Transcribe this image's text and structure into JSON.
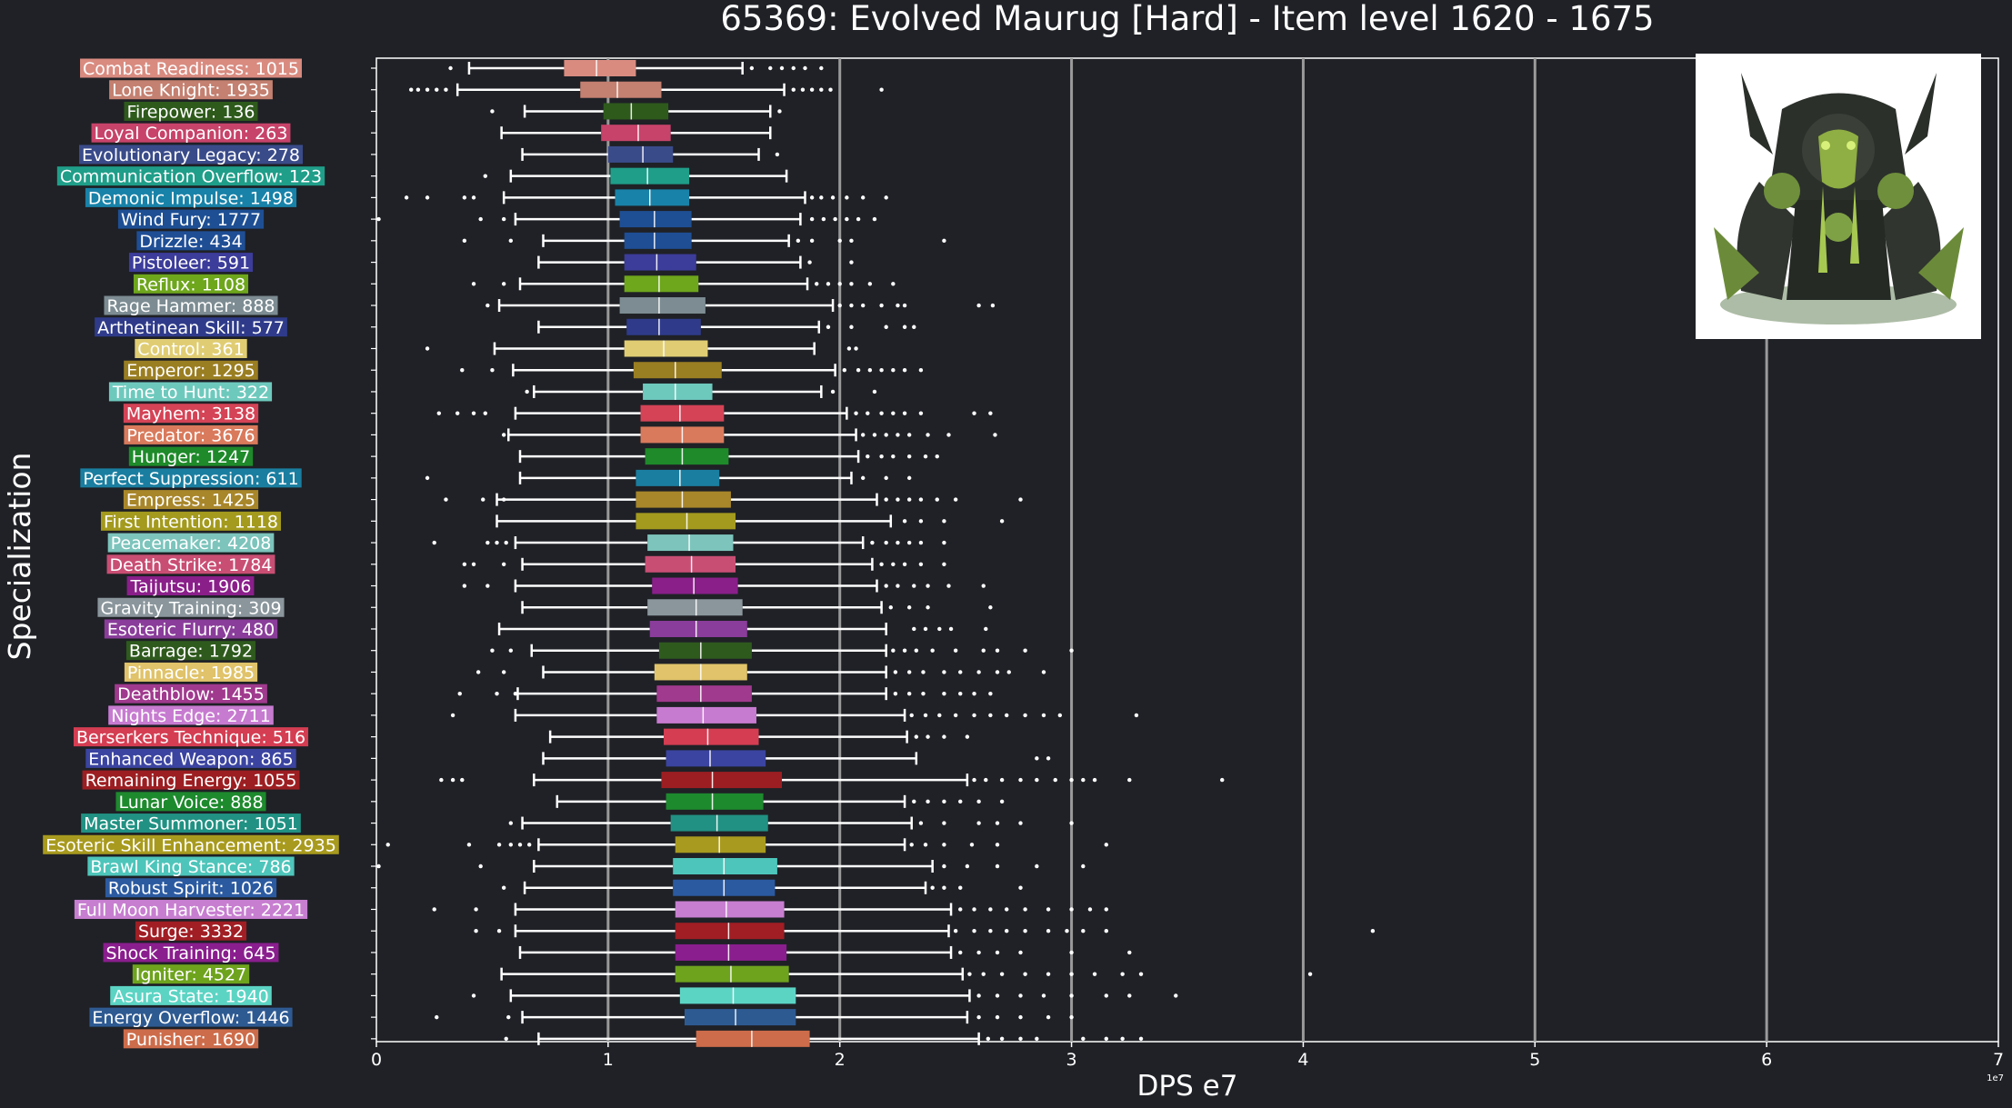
{
  "chart_data": {
    "type": "box",
    "title": "65369: Evolved Maurug [Hard] - Item level 1620 - 1675",
    "xlabel": "DPS e7",
    "ylabel": "Specialization",
    "axis_offset_label": "1e7",
    "xlim": [
      0,
      7
    ],
    "xticks": [
      "0",
      "1",
      "2",
      "3",
      "4",
      "5",
      "6",
      "7"
    ],
    "grid": "vertical",
    "legend": "none",
    "categories": [
      {
        "label": "Combat Readiness: 1015",
        "color": "#d98b80",
        "stats": [
          0.4,
          0.81,
          0.95,
          1.12,
          1.58
        ],
        "outliers": [
          0.32,
          1.62,
          1.7,
          1.75,
          1.8,
          1.85,
          1.92
        ]
      },
      {
        "label": "Lone Knight: 1935",
        "color": "#c48070",
        "stats": [
          0.35,
          0.88,
          1.04,
          1.23,
          1.76
        ],
        "outliers": [
          0.15,
          0.18,
          0.22,
          0.26,
          0.3,
          1.8,
          1.84,
          1.88,
          1.92,
          1.96,
          2.18
        ]
      },
      {
        "label": "Firepower: 136",
        "color": "#2e5a1c",
        "stats": [
          0.64,
          0.98,
          1.1,
          1.26,
          1.7
        ],
        "outliers": [
          0.5,
          1.74
        ]
      },
      {
        "label": "Loyal Companion: 263",
        "color": "#c7436a",
        "stats": [
          0.54,
          0.97,
          1.13,
          1.27,
          1.7
        ],
        "outliers": []
      },
      {
        "label": "Evolutionary Legacy: 278",
        "color": "#3a4b8a",
        "stats": [
          0.63,
          1.0,
          1.15,
          1.28,
          1.65
        ],
        "outliers": [
          1.73
        ]
      },
      {
        "label": "Communication Overflow: 123",
        "color": "#1f9e89",
        "stats": [
          0.58,
          1.01,
          1.17,
          1.35,
          1.77
        ],
        "outliers": [
          0.47
        ]
      },
      {
        "label": "Demonic Impulse: 1498",
        "color": "#1882a8",
        "stats": [
          0.55,
          1.03,
          1.18,
          1.35,
          1.85
        ],
        "outliers": [
          0.13,
          0.22,
          0.38,
          0.42,
          1.88,
          1.92,
          1.97,
          2.03,
          2.1,
          2.2
        ]
      },
      {
        "label": "Wind Fury: 1777",
        "color": "#1e4f94",
        "stats": [
          0.6,
          1.05,
          1.2,
          1.36,
          1.83
        ],
        "outliers": [
          0.01,
          0.45,
          0.55,
          1.88,
          1.93,
          1.98,
          2.03,
          2.08,
          2.15
        ]
      },
      {
        "label": "Drizzle: 434",
        "color": "#1f4e95",
        "stats": [
          0.72,
          1.07,
          1.2,
          1.36,
          1.78
        ],
        "outliers": [
          0.38,
          0.58,
          1.82,
          1.88,
          2.0,
          2.05,
          2.45
        ]
      },
      {
        "label": "Pistoleer: 591",
        "color": "#3c3c9a",
        "stats": [
          0.7,
          1.07,
          1.21,
          1.38,
          1.83
        ],
        "outliers": [
          1.87,
          2.05
        ]
      },
      {
        "label": "Reflux: 1108",
        "color": "#6ea61c",
        "stats": [
          0.62,
          1.07,
          1.22,
          1.39,
          1.86
        ],
        "outliers": [
          0.42,
          0.55,
          1.9,
          1.95,
          2.0,
          2.05,
          2.13,
          2.23
        ]
      },
      {
        "label": "Rage Hammer: 888",
        "color": "#7c8c92",
        "stats": [
          0.53,
          1.05,
          1.22,
          1.42,
          1.97
        ],
        "outliers": [
          0.48,
          2.0,
          2.05,
          2.1,
          2.18,
          2.25,
          2.28,
          2.6,
          2.66
        ]
      },
      {
        "label": "Arthetinean Skill: 577",
        "color": "#2f3b8a",
        "stats": [
          0.7,
          1.08,
          1.22,
          1.4,
          1.91
        ],
        "outliers": [
          1.95,
          2.05,
          2.2,
          2.28,
          2.32
        ]
      },
      {
        "label": "Control: 361",
        "color": "#e0cd73",
        "stats": [
          0.51,
          1.07,
          1.24,
          1.43,
          1.89
        ],
        "outliers": [
          0.22,
          2.04,
          2.07
        ]
      },
      {
        "label": "Emperor: 1295",
        "color": "#9a7e22",
        "stats": [
          0.59,
          1.11,
          1.29,
          1.49,
          1.98
        ],
        "outliers": [
          0.37,
          0.5,
          2.02,
          2.08,
          2.13,
          2.18,
          2.23,
          2.28,
          2.35
        ]
      },
      {
        "label": "Time to Hunt: 322",
        "color": "#6ec9bd",
        "stats": [
          0.68,
          1.15,
          1.29,
          1.45,
          1.92
        ],
        "outliers": [
          0.65,
          1.97,
          2.15
        ]
      },
      {
        "label": "Mayhem: 3138",
        "color": "#d44356",
        "stats": [
          0.6,
          1.14,
          1.31,
          1.5,
          2.03
        ],
        "outliers": [
          0.27,
          0.35,
          0.42,
          0.47,
          2.07,
          2.12,
          2.18,
          2.23,
          2.28,
          2.35,
          2.58,
          2.65
        ]
      },
      {
        "label": "Predator: 3676",
        "color": "#d97a5c",
        "stats": [
          0.57,
          1.14,
          1.32,
          1.5,
          2.07
        ],
        "outliers": [
          0.55,
          2.1,
          2.15,
          2.2,
          2.25,
          2.3,
          2.38,
          2.47,
          2.67
        ]
      },
      {
        "label": "Hunger: 1247",
        "color": "#1e8a2a",
        "stats": [
          0.62,
          1.16,
          1.32,
          1.52,
          2.08
        ],
        "outliers": [
          2.12,
          2.18,
          2.23,
          2.3,
          2.37,
          2.42
        ]
      },
      {
        "label": "Perfect Suppression: 611",
        "color": "#1a7ea0",
        "stats": [
          0.62,
          1.12,
          1.31,
          1.48,
          2.05
        ],
        "outliers": [
          0.22,
          2.1,
          2.2,
          2.3
        ]
      },
      {
        "label": "Empress: 1425",
        "color": "#a8862a",
        "stats": [
          0.52,
          1.12,
          1.32,
          1.53,
          2.16
        ],
        "outliers": [
          0.3,
          0.46,
          0.55,
          2.2,
          2.25,
          2.3,
          2.35,
          2.42,
          2.5,
          2.78
        ]
      },
      {
        "label": "First Intention: 1118",
        "color": "#a39a1e",
        "stats": [
          0.52,
          1.12,
          1.34,
          1.55,
          2.22
        ],
        "outliers": [
          2.28,
          2.35,
          2.45,
          2.7
        ]
      },
      {
        "label": "Peacemaker: 4208",
        "color": "#7cc4bc",
        "stats": [
          0.6,
          1.17,
          1.35,
          1.54,
          2.1
        ],
        "outliers": [
          0.25,
          0.48,
          0.52,
          0.56,
          2.14,
          2.2,
          2.25,
          2.3,
          2.35,
          2.45
        ]
      },
      {
        "label": "Death Strike: 1784",
        "color": "#c94e74",
        "stats": [
          0.63,
          1.16,
          1.36,
          1.55,
          2.14
        ],
        "outliers": [
          0.38,
          0.42,
          0.55,
          2.18,
          2.23,
          2.28,
          2.35,
          2.45
        ]
      },
      {
        "label": "Taijutsu: 1906",
        "color": "#8a1f8a",
        "stats": [
          0.6,
          1.19,
          1.37,
          1.56,
          2.16
        ],
        "outliers": [
          0.38,
          0.48,
          2.2,
          2.25,
          2.32,
          2.38,
          2.47,
          2.62
        ]
      },
      {
        "label": "Gravity Training: 309",
        "color": "#8a969c",
        "stats": [
          0.63,
          1.17,
          1.38,
          1.58,
          2.18
        ],
        "outliers": [
          2.22,
          2.3,
          2.38,
          2.65
        ]
      },
      {
        "label": "Esoteric Flurry: 480",
        "color": "#8a3d9a",
        "stats": [
          0.53,
          1.18,
          1.38,
          1.6,
          2.2
        ],
        "outliers": [
          2.32,
          2.37,
          2.43,
          2.48,
          2.63
        ]
      },
      {
        "label": "Barrage: 1792",
        "color": "#2f5a1e",
        "stats": [
          0.67,
          1.22,
          1.4,
          1.62,
          2.2
        ],
        "outliers": [
          0.5,
          0.58,
          2.23,
          2.28,
          2.33,
          2.4,
          2.5,
          2.62,
          2.68,
          2.8,
          3.0
        ]
      },
      {
        "label": "Pinnacle: 1985",
        "color": "#e0c36a",
        "stats": [
          0.72,
          1.2,
          1.4,
          1.6,
          2.2
        ],
        "outliers": [
          0.44,
          0.55,
          2.24,
          2.3,
          2.36,
          2.45,
          2.52,
          2.6,
          2.68,
          2.73,
          2.88
        ]
      },
      {
        "label": "Deathblow: 1455",
        "color": "#a03a8e",
        "stats": [
          0.61,
          1.21,
          1.4,
          1.62,
          2.2
        ],
        "outliers": [
          0.36,
          0.52,
          0.6,
          2.24,
          2.3,
          2.36,
          2.45,
          2.52,
          2.58,
          2.65
        ]
      },
      {
        "label": "Nights Edge: 2711",
        "color": "#c77bd0",
        "stats": [
          0.6,
          1.21,
          1.41,
          1.64,
          2.28
        ],
        "outliers": [
          0.33,
          2.31,
          2.37,
          2.43,
          2.5,
          2.58,
          2.65,
          2.72,
          2.8,
          2.88,
          2.95,
          3.28
        ]
      },
      {
        "label": "Berserkers Technique: 516",
        "color": "#d43d52",
        "stats": [
          0.75,
          1.24,
          1.43,
          1.65,
          2.29
        ],
        "outliers": [
          2.33,
          2.38,
          2.45,
          2.55
        ]
      },
      {
        "label": "Enhanced Weapon: 865",
        "color": "#3b44a0",
        "stats": [
          0.72,
          1.25,
          1.44,
          1.68,
          2.33
        ],
        "outliers": [
          2.85,
          2.9
        ]
      },
      {
        "label": "Remaining Energy: 1055",
        "color": "#9c1e22",
        "stats": [
          0.68,
          1.23,
          1.45,
          1.75,
          2.55
        ],
        "outliers": [
          0.28,
          0.33,
          0.37,
          2.58,
          2.63,
          2.7,
          2.78,
          2.85,
          2.93,
          3.0,
          3.05,
          3.1,
          3.25,
          3.65
        ]
      },
      {
        "label": "Lunar Voice: 888",
        "color": "#1e8a2e",
        "stats": [
          0.78,
          1.25,
          1.45,
          1.67,
          2.28
        ],
        "outliers": [
          2.32,
          2.38,
          2.45,
          2.52,
          2.6,
          2.7
        ]
      },
      {
        "label": "Master Summoner: 1051",
        "color": "#219183",
        "stats": [
          0.63,
          1.27,
          1.47,
          1.69,
          2.31
        ],
        "outliers": [
          0.58,
          2.35,
          2.45,
          2.6,
          2.68,
          2.78,
          3.0
        ]
      },
      {
        "label": "Esoteric Skill Enhancement: 2935",
        "color": "#a89a1e",
        "stats": [
          0.7,
          1.29,
          1.48,
          1.68,
          2.28
        ],
        "outliers": [
          0.05,
          0.4,
          0.53,
          0.58,
          0.62,
          0.66,
          2.31,
          2.37,
          2.45,
          2.57,
          2.68,
          3.15
        ]
      },
      {
        "label": "Brawl King Stance: 786",
        "color": "#4ec5ba",
        "stats": [
          0.68,
          1.28,
          1.5,
          1.73,
          2.4
        ],
        "outliers": [
          0.01,
          0.45,
          2.45,
          2.55,
          2.68,
          2.85,
          3.05
        ]
      },
      {
        "label": "Robust Spirit: 1026",
        "color": "#2b5aa0",
        "stats": [
          0.64,
          1.28,
          1.5,
          1.72,
          2.37
        ],
        "outliers": [
          0.55,
          2.4,
          2.45,
          2.52,
          2.78
        ]
      },
      {
        "label": "Full Moon Harvester: 2221",
        "color": "#c77ed0",
        "stats": [
          0.6,
          1.29,
          1.51,
          1.76,
          2.48
        ],
        "outliers": [
          0.25,
          0.43,
          2.52,
          2.58,
          2.65,
          2.72,
          2.8,
          2.9,
          3.0,
          3.08,
          3.15
        ]
      },
      {
        "label": "Surge: 3332",
        "color": "#a01e24",
        "stats": [
          0.6,
          1.29,
          1.52,
          1.76,
          2.47
        ],
        "outliers": [
          0.43,
          0.53,
          2.5,
          2.58,
          2.65,
          2.72,
          2.8,
          2.9,
          2.98,
          3.05,
          3.15,
          4.3
        ]
      },
      {
        "label": "Shock Training: 645",
        "color": "#8a1e8e",
        "stats": [
          0.62,
          1.29,
          1.52,
          1.77,
          2.48
        ],
        "outliers": [
          2.52,
          2.6,
          2.68,
          2.78,
          3.0,
          3.25
        ]
      },
      {
        "label": "Igniter: 4527",
        "color": "#6ea31e",
        "stats": [
          0.54,
          1.29,
          1.53,
          1.78,
          2.53
        ],
        "outliers": [
          2.56,
          2.62,
          2.7,
          2.8,
          2.9,
          3.0,
          3.1,
          3.22,
          3.3,
          4.03
        ]
      },
      {
        "label": "Asura State: 1940",
        "color": "#5cd4c4",
        "stats": [
          0.58,
          1.31,
          1.54,
          1.81,
          2.56
        ],
        "outliers": [
          0.42,
          2.6,
          2.68,
          2.78,
          2.88,
          3.0,
          3.15,
          3.25,
          3.45
        ]
      },
      {
        "label": "Energy Overflow: 1446",
        "color": "#2e5a92",
        "stats": [
          0.63,
          1.33,
          1.55,
          1.81,
          2.55
        ],
        "outliers": [
          0.26,
          0.57,
          2.6,
          2.68,
          2.78,
          2.9,
          3.0
        ]
      },
      {
        "label": "Punisher: 1690",
        "color": "#cd6c4a",
        "stats": [
          0.7,
          1.38,
          1.62,
          1.87,
          2.6
        ],
        "outliers": [
          0.56,
          2.64,
          2.7,
          2.78,
          2.85,
          3.05,
          3.15,
          3.22,
          3.3
        ]
      }
    ],
    "image": {
      "name": "boss-portrait",
      "description_hidden": true
    }
  }
}
